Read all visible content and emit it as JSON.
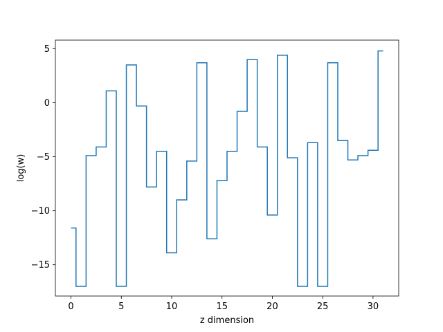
{
  "chart_data": {
    "type": "line",
    "drawstyle": "steps-mid",
    "title": "",
    "xlabel": "z dimension",
    "ylabel": "log(w)",
    "xlim": [
      -1.55,
      32.55
    ],
    "ylim": [
      -17.9,
      5.8
    ],
    "xticks": [
      0,
      5,
      10,
      15,
      20,
      25,
      30
    ],
    "xtick_labels": [
      "0",
      "5",
      "10",
      "15",
      "20",
      "25",
      "30"
    ],
    "yticks": [
      5,
      0,
      -5,
      -10,
      -15
    ],
    "ytick_labels": [
      "5",
      "0",
      "−5",
      "−10",
      "−15"
    ],
    "grid": false,
    "legend": "none",
    "series": [
      {
        "color": "#1f77b4",
        "x": [
          0,
          1,
          2,
          3,
          4,
          5,
          6,
          7,
          8,
          9,
          10,
          11,
          12,
          13,
          14,
          15,
          16,
          17,
          18,
          19,
          20,
          21,
          22,
          23,
          24,
          25,
          26,
          27,
          28,
          29,
          30,
          31
        ],
        "y": [
          -11.6,
          -17.0,
          -4.9,
          -4.1,
          1.1,
          -17.0,
          3.5,
          -0.3,
          -7.8,
          -4.5,
          -13.9,
          -9.0,
          -5.4,
          3.7,
          -12.6,
          -7.2,
          -4.5,
          -0.8,
          4.0,
          -4.1,
          -10.4,
          4.4,
          -5.1,
          -17.0,
          -3.7,
          -17.0,
          3.7,
          -3.5,
          -5.3,
          -4.9,
          -4.4,
          4.8
        ]
      }
    ]
  }
}
